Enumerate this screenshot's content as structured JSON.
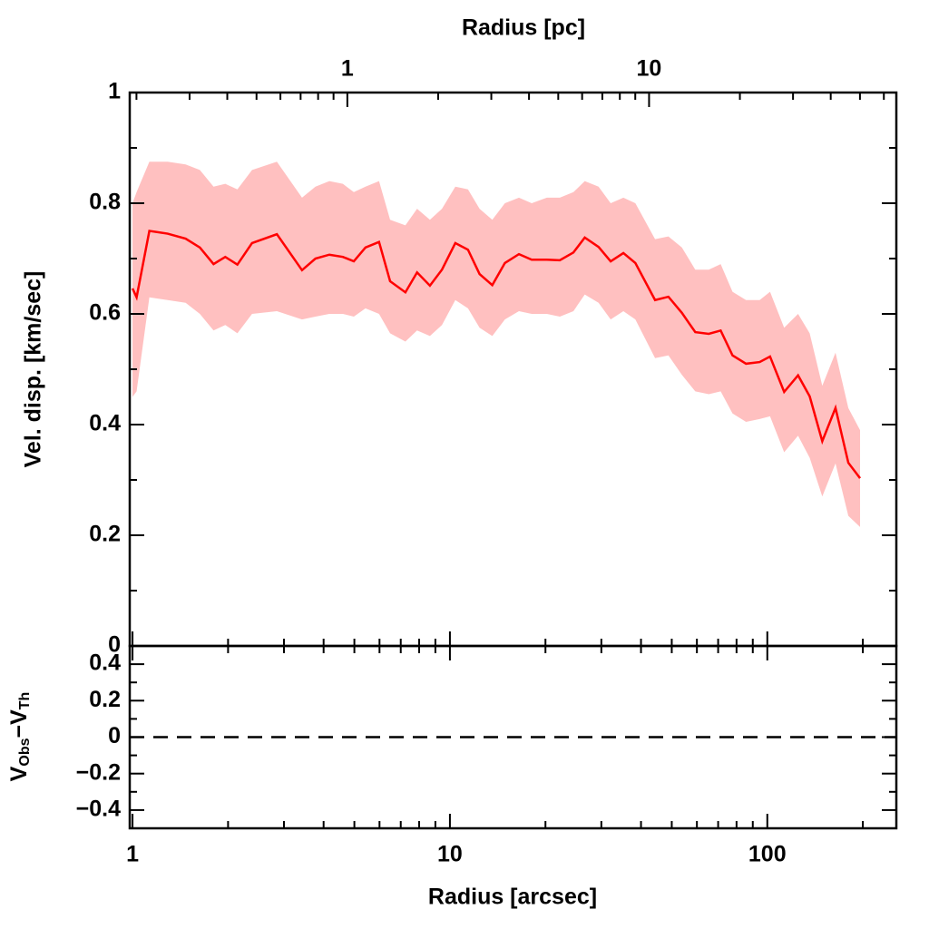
{
  "chart_data": [
    {
      "type": "band-line",
      "x2label": "Radius [pc]",
      "ylabel": "Vel. disp. [km/sec]",
      "xscale": "log",
      "xlim": [
        0.98,
        255
      ],
      "x2lim": [
        0.19,
        66
      ],
      "x2ticks": [
        1,
        10
      ],
      "x2minorticks": [
        0.2,
        0.3,
        0.4,
        0.5,
        0.6,
        0.7,
        0.8,
        0.9,
        2,
        3,
        4,
        5,
        6,
        7,
        8,
        9,
        20,
        30,
        40,
        50,
        60
      ],
      "ylim": [
        0,
        1
      ],
      "yticks": [
        0,
        0.2,
        0.4,
        0.6,
        0.8,
        1
      ],
      "yminorticks": [
        0.1,
        0.3,
        0.5,
        0.7,
        0.9
      ],
      "series": [
        {
          "color": "#ff0000",
          "band_color": "#ffc0c0",
          "x": [
            1.0,
            1.03,
            1.13,
            1.29,
            1.47,
            1.63,
            1.8,
            1.96,
            2.14,
            2.38,
            2.85,
            3.42,
            3.77,
            4.17,
            4.6,
            4.98,
            5.42,
            5.98,
            6.48,
            7.24,
            7.88,
            8.65,
            9.44,
            10.4,
            11.4,
            12.4,
            13.6,
            14.9,
            16.5,
            18.1,
            20.2,
            22.2,
            24.5,
            26.6,
            29.4,
            32.1,
            35.2,
            38.4,
            44.3,
            48.8,
            53.8,
            59.3,
            65.4,
            71.3,
            77.7,
            85.7,
            94.6,
            102,
            113,
            125,
            136,
            149,
            164,
            180,
            196
          ],
          "values": [
            0.646,
            0.63,
            0.75,
            0.745,
            0.736,
            0.72,
            0.69,
            0.703,
            0.689,
            0.728,
            0.744,
            0.679,
            0.7,
            0.707,
            0.703,
            0.695,
            0.72,
            0.73,
            0.659,
            0.639,
            0.675,
            0.651,
            0.68,
            0.728,
            0.716,
            0.672,
            0.652,
            0.692,
            0.708,
            0.698,
            0.698,
            0.697,
            0.711,
            0.738,
            0.721,
            0.695,
            0.71,
            0.692,
            0.625,
            0.631,
            0.602,
            0.567,
            0.564,
            0.57,
            0.525,
            0.51,
            0.513,
            0.523,
            0.459,
            0.489,
            0.451,
            0.37,
            0.43,
            0.331,
            0.303
          ],
          "upper": [
            0.8,
            0.82,
            0.875,
            0.875,
            0.87,
            0.86,
            0.83,
            0.835,
            0.825,
            0.86,
            0.875,
            0.81,
            0.83,
            0.84,
            0.835,
            0.82,
            0.83,
            0.84,
            0.77,
            0.76,
            0.79,
            0.77,
            0.79,
            0.83,
            0.825,
            0.79,
            0.77,
            0.8,
            0.81,
            0.8,
            0.81,
            0.81,
            0.82,
            0.84,
            0.83,
            0.8,
            0.81,
            0.8,
            0.735,
            0.74,
            0.72,
            0.68,
            0.68,
            0.69,
            0.64,
            0.625,
            0.625,
            0.64,
            0.575,
            0.6,
            0.565,
            0.47,
            0.53,
            0.43,
            0.39
          ],
          "lower": [
            0.45,
            0.46,
            0.63,
            0.625,
            0.62,
            0.6,
            0.57,
            0.58,
            0.565,
            0.6,
            0.605,
            0.59,
            0.595,
            0.6,
            0.6,
            0.595,
            0.61,
            0.6,
            0.565,
            0.55,
            0.57,
            0.56,
            0.58,
            0.625,
            0.61,
            0.575,
            0.56,
            0.59,
            0.605,
            0.6,
            0.6,
            0.595,
            0.605,
            0.635,
            0.62,
            0.59,
            0.605,
            0.59,
            0.52,
            0.525,
            0.49,
            0.46,
            0.455,
            0.46,
            0.42,
            0.405,
            0.41,
            0.415,
            0.35,
            0.38,
            0.34,
            0.27,
            0.33,
            0.235,
            0.215
          ]
        }
      ]
    },
    {
      "type": "residual",
      "xlabel": "Radius [arcsec]",
      "ylabel": [
        "V",
        "Obs",
        "−V",
        "Th"
      ],
      "xscale": "log",
      "xlim": [
        0.98,
        255
      ],
      "xticks": [
        1,
        10,
        100
      ],
      "xminorticks": [
        2,
        3,
        4,
        5,
        6,
        7,
        8,
        9,
        20,
        30,
        40,
        50,
        60,
        70,
        80,
        90,
        200
      ],
      "ylim": [
        -0.5,
        0.5
      ],
      "yticks": [
        {
          "value": -0.4,
          "label": "−0.4"
        },
        {
          "value": -0.2,
          "label": "−0.2"
        },
        0,
        0.2,
        0.4
      ],
      "yminorticks": [
        -0.3,
        -0.1,
        0.1,
        0.3
      ],
      "hline": 0
    }
  ]
}
